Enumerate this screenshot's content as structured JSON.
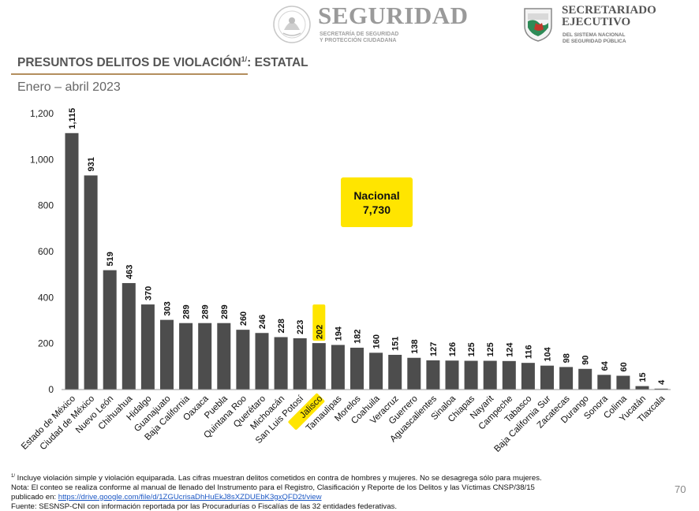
{
  "header": {
    "brand_title": "SEGURIDAD",
    "brand_subtitle": "SECRETARÍA DE SEGURIDAD\nY PROTECCIÓN CIUDADANA",
    "seal_caption": "ESTADOS UNIDOS MEXICANOS",
    "sesnsp_title": "SECRETARIADO\nEJECUTIVO",
    "sesnsp_subtitle": "DEL SISTEMA NACIONAL\nDE SEGURIDAD PÚBLICA"
  },
  "title": {
    "text": "PRESUNTOS DELITOS DE VIOLACIÓN",
    "superscript": "1/",
    "suffix": ": ESTATAL"
  },
  "subtitle": "Enero – abril 2023",
  "nacional": {
    "label": "Nacional",
    "value": "7,730"
  },
  "colors": {
    "bar": "#4d4d4d",
    "bar_dark": "#333333",
    "highlight": "#ffe500",
    "rule": "#b38e5d"
  },
  "chart_data": {
    "type": "bar",
    "categories": [
      "Estado de México",
      "Ciudad de México",
      "Nuevo León",
      "Chihuahua",
      "Hidalgo",
      "Guanajuato",
      "Baja California",
      "Oaxaca",
      "Puebla",
      "Quintana Roo",
      "Querétaro",
      "Michoacán",
      "San Luis Potosí",
      "Jalisco",
      "Tamaulipas",
      "Morelos",
      "Coahuila",
      "Veracruz",
      "Guerrero",
      "Aguascalientes",
      "Sinaloa",
      "Chiapas",
      "Nayarit",
      "Campeche",
      "Tabasco",
      "Baja California Sur",
      "Zacatecas",
      "Durango",
      "Sonora",
      "Colima",
      "Yucatán",
      "Tlaxcala"
    ],
    "values": [
      1115,
      931,
      519,
      463,
      370,
      303,
      289,
      289,
      289,
      260,
      246,
      228,
      223,
      202,
      194,
      182,
      160,
      151,
      138,
      127,
      126,
      125,
      125,
      124,
      116,
      104,
      98,
      90,
      64,
      60,
      15,
      4
    ],
    "value_labels": [
      "1,115",
      "931",
      "519",
      "463",
      "370",
      "303",
      "289",
      "289",
      "289",
      "260",
      "246",
      "228",
      "223",
      "202",
      "194",
      "182",
      "160",
      "151",
      "138",
      "127",
      "126",
      "125",
      "125",
      "124",
      "116",
      "104",
      "98",
      "90",
      "64",
      "60",
      "15",
      "4"
    ],
    "highlight": "Jalisco",
    "ylim": [
      0,
      1200
    ],
    "yticks": [
      0,
      200,
      400,
      600,
      800,
      1000,
      1200
    ],
    "ytick_labels": [
      "0",
      "200",
      "400",
      "600",
      "800",
      "1,000",
      "1,200"
    ],
    "title": "PRESUNTOS DELITOS DE VIOLACIÓN1/: ESTATAL",
    "subtitle": "Enero – abril 2023",
    "xlabel": "",
    "ylabel": "",
    "grid": false
  },
  "footnotes": {
    "note1_sup": "1/",
    "note1": " Incluye violación simple y violación equiparada. Las cifras muestran delitos cometidos en contra de hombres y mujeres. No se desagrega sólo para mujeres.",
    "note2": "Nota: El conteo se realiza conforme al manual de llenado del Instrumento para el Registro, Clasificación y Reporte de los Delitos y las Víctimas CNSP/38/15",
    "note2b": "publicado en: ",
    "link": "https://drive.google.com/file/d/1ZGUcrisaDhHuEkJ8sXZDUEbK3gxQFD2t/view",
    "source": "Fuente: SESNSP-CNI con información reportada por las Procuradurías o Fiscalías de las 32 entidades federativas."
  },
  "page_number": "70"
}
